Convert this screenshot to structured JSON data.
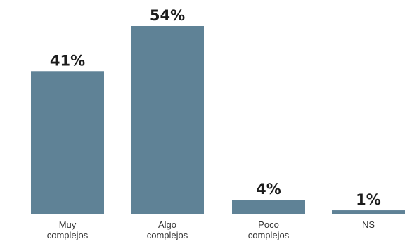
{
  "chart_data": {
    "type": "bar",
    "categories": [
      [
        "Muy",
        "complejos"
      ],
      [
        "Algo",
        "complejos"
      ],
      [
        "Poco",
        "complejos"
      ],
      [
        "NS"
      ]
    ],
    "values": [
      41,
      54,
      4,
      1
    ],
    "value_labels": [
      "41%",
      "54%",
      "4%",
      "1%"
    ],
    "ylim": [
      0,
      60
    ],
    "grid": false,
    "bar_color": "#5f8296",
    "axis_color": "#9aa0a4"
  }
}
